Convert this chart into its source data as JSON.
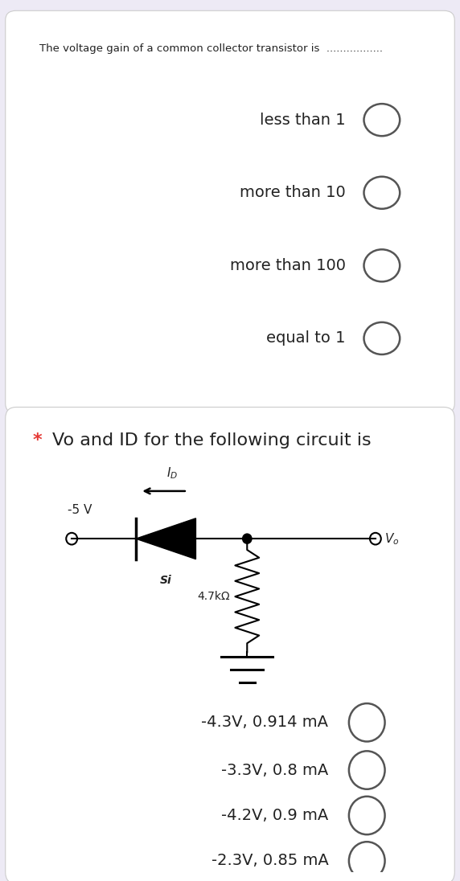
{
  "bg_color": "#edeaf5",
  "card1_bg": "#ffffff",
  "card2_bg": "#ffffff",
  "card1_title": "The voltage gain of a common collector transistor is  .................",
  "card1_options": [
    "less than 1",
    "more than 10",
    "more than 100",
    "equal to 1"
  ],
  "card2_title_star": "* ",
  "card2_title_rest": "Vo and ID for the following circuit is",
  "card2_options": [
    "-4.3V, 0.914 mA",
    "-3.3V, 0.8 mA",
    "-4.2V, 0.9 mA",
    "-2.3V, 0.85 mA"
  ],
  "title_fontsize": 9.5,
  "option_fontsize": 14,
  "card2_title_fontsize": 16,
  "star_color": "#e53935",
  "radio_color": "#555555",
  "text_color": "#222222",
  "circuit_voltage": "-5 V",
  "circuit_resistor": "4.7kΩ",
  "circuit_material": "Si",
  "circuit_id_label": "I",
  "circuit_id_sub": "D",
  "circuit_vo_label": "V",
  "circuit_vo_sub": "o"
}
